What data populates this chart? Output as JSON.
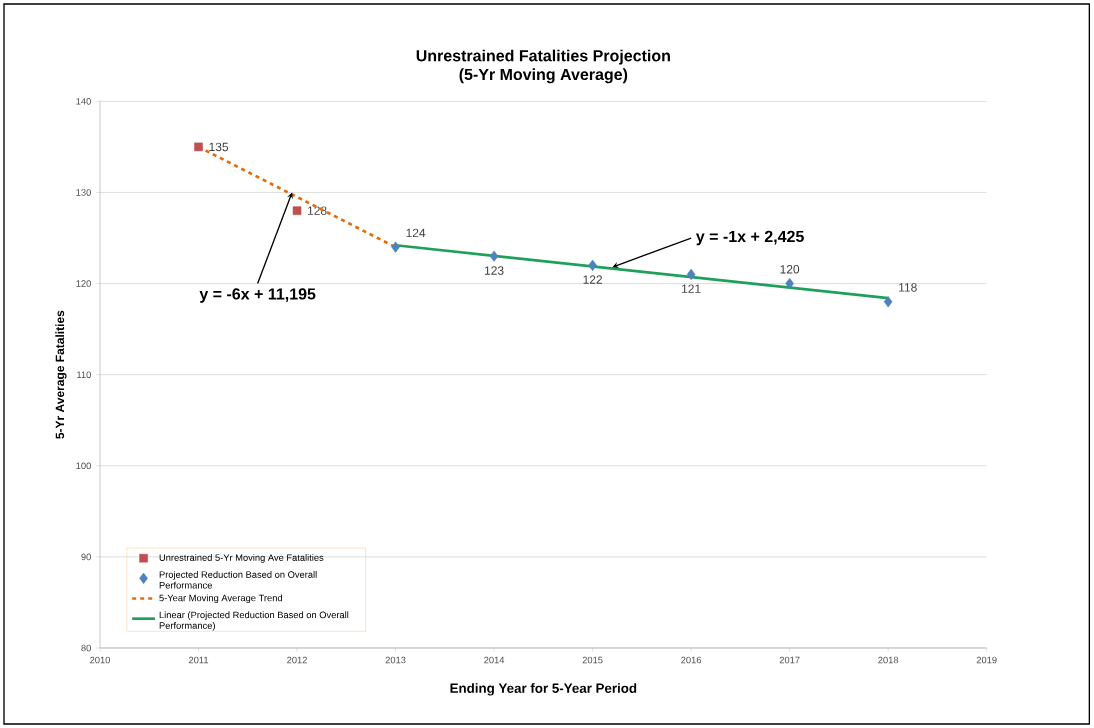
{
  "chart_data": {
    "type": "line",
    "title": "Unrestrained Fatalities Projection",
    "subtitle": "(5-Yr Moving Average)",
    "xlabel": "Ending Year for 5-Year Period",
    "ylabel": "5-Yr Average Fatalities",
    "xlim": [
      2010,
      2019
    ],
    "xticks": [
      2010,
      2011,
      2012,
      2013,
      2014,
      2015,
      2016,
      2017,
      2018,
      2019
    ],
    "ylim": [
      80,
      140
    ],
    "yticks": [
      80,
      90,
      100,
      110,
      120,
      130,
      140
    ],
    "grid": "y",
    "legend": "bottom left",
    "series": [
      {
        "name": "Unrestrained 5-Yr Moving Ave Fatalities",
        "type": "scatter",
        "marker": "square",
        "color": "#c0504d",
        "x": [
          2011,
          2012
        ],
        "values": [
          135,
          128
        ],
        "value_labels": [
          "135",
          "128"
        ]
      },
      {
        "name": "Projected Reduction Based on Overall Performance",
        "type": "scatter",
        "marker": "diamond",
        "color": "#4f81bd",
        "x": [
          2013,
          2014,
          2015,
          2016,
          2017,
          2018
        ],
        "values": [
          124,
          123,
          122,
          121,
          120,
          118
        ],
        "value_labels": [
          "124",
          "123",
          "122",
          "121",
          "120",
          "118"
        ]
      },
      {
        "name": "5-Year Moving Average Trend",
        "type": "line",
        "marker": "none",
        "line_style": "dashed",
        "color": "#e46c0a",
        "x": [
          2011,
          2013
        ],
        "values": [
          135,
          124
        ]
      },
      {
        "name": "Linear (Projected Reduction Based on Overall Performance)",
        "type": "line",
        "marker": "none",
        "line_style": "solid",
        "color": "#1fa05a",
        "x": [
          2013,
          2018
        ],
        "values": [
          124.2,
          118.4
        ]
      }
    ],
    "annotations": [
      {
        "text": "y = -6x + 11,195",
        "x": 2011.95,
        "y": 130
      },
      {
        "text": "y = -1x + 2,425",
        "x": 2015.2,
        "y": 121.8
      }
    ]
  }
}
